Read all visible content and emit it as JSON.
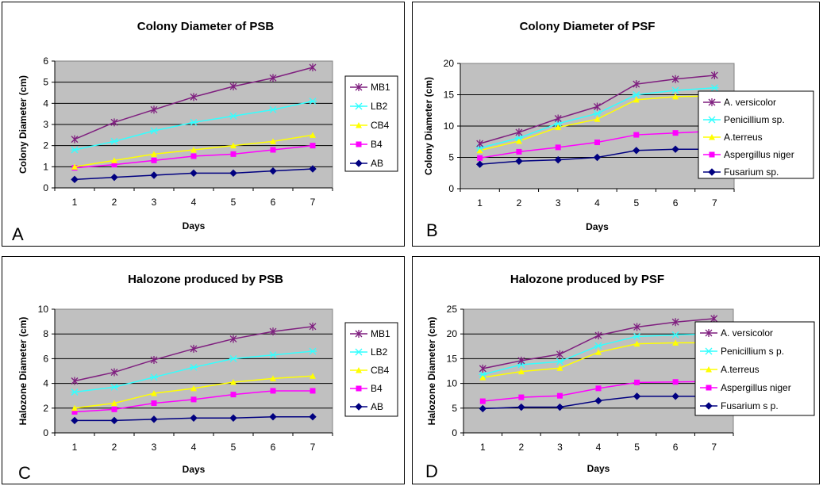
{
  "colors": {
    "plot_bg": "#c0c0c0",
    "grid": "#000000",
    "series": [
      "#7f1f7f",
      "#33ffff",
      "#ffff00",
      "#ff00ff",
      "#000080"
    ]
  },
  "chart_data": [
    {
      "panel": "A",
      "type": "line",
      "title": "Colony Diameter of PSB",
      "xlabel": "Days",
      "ylabel": "Colony Diameter (cm)",
      "x": [
        1,
        2,
        3,
        4,
        5,
        6,
        7
      ],
      "x_ticks": [
        "1",
        "2",
        "3",
        "4",
        "5",
        "6",
        "7"
      ],
      "ylim": [
        0,
        6
      ],
      "y_ticks": [
        "0",
        "1",
        "2",
        "3",
        "4",
        "5",
        "6"
      ],
      "grid": "horizontal",
      "legend_position": "right",
      "series": [
        {
          "name": "MB1",
          "marker": "star",
          "color": "#7f1f7f",
          "values": [
            2.3,
            3.1,
            3.7,
            4.3,
            4.8,
            5.2,
            5.7
          ]
        },
        {
          "name": "LB2",
          "marker": "asterisk",
          "color": "#33ffff",
          "values": [
            1.8,
            2.2,
            2.7,
            3.1,
            3.4,
            3.7,
            4.1
          ]
        },
        {
          "name": "CB4",
          "marker": "triangle",
          "color": "#ffff00",
          "values": [
            1.0,
            1.3,
            1.6,
            1.8,
            2.0,
            2.2,
            2.5
          ]
        },
        {
          "name": "B4",
          "marker": "square",
          "color": "#ff00ff",
          "values": [
            0.95,
            1.1,
            1.3,
            1.5,
            1.6,
            1.8,
            2.0
          ]
        },
        {
          "name": "AB",
          "marker": "diamond",
          "color": "#000080",
          "values": [
            0.4,
            0.5,
            0.6,
            0.7,
            0.7,
            0.8,
            0.9
          ]
        }
      ]
    },
    {
      "panel": "B",
      "type": "line",
      "title": "Colony Diameter of PSF",
      "xlabel": "Days",
      "ylabel": "Colony Diameter (cm)",
      "x": [
        1,
        2,
        3,
        4,
        5,
        6,
        7
      ],
      "x_ticks": [
        "1",
        "2",
        "3",
        "4",
        "5",
        "6",
        "7"
      ],
      "ylim": [
        0,
        20
      ],
      "y_ticks": [
        "0",
        "5",
        "10",
        "15",
        "20"
      ],
      "grid": "horizontal",
      "legend_position": "right",
      "series": [
        {
          "name": "A. versicolor",
          "marker": "star",
          "color": "#7f1f7f",
          "values": [
            7.2,
            9.0,
            11.2,
            13.1,
            16.7,
            17.5,
            18.1
          ]
        },
        {
          "name": "Penicillium sp.",
          "marker": "asterisk",
          "color": "#33ffff",
          "values": [
            6.5,
            8.1,
            10.4,
            12.0,
            15.0,
            15.7,
            16.1
          ]
        },
        {
          "name": "A.terreus",
          "marker": "triangle",
          "color": "#ffff00",
          "values": [
            6.1,
            7.6,
            9.8,
            11.1,
            14.2,
            14.7,
            14.8
          ]
        },
        {
          "name": "Aspergillus niger",
          "marker": "square",
          "color": "#ff00ff",
          "values": [
            4.9,
            5.9,
            6.6,
            7.4,
            8.6,
            8.9,
            9.2
          ]
        },
        {
          "name": "Fusarium sp.",
          "marker": "diamond",
          "color": "#000080",
          "values": [
            3.9,
            4.4,
            4.6,
            5.0,
            6.1,
            6.3,
            6.3
          ]
        }
      ]
    },
    {
      "panel": "C",
      "type": "line",
      "title": "Halozone produced by PSB",
      "xlabel": "Days",
      "ylabel": "Halozone Diameter (cm)",
      "x": [
        1,
        2,
        3,
        4,
        5,
        6,
        7
      ],
      "x_ticks": [
        "1",
        "2",
        "3",
        "4",
        "5",
        "6",
        "7"
      ],
      "ylim": [
        0,
        10
      ],
      "y_ticks": [
        "0",
        "2",
        "4",
        "6",
        "8",
        "10"
      ],
      "grid": "horizontal",
      "legend_position": "right",
      "series": [
        {
          "name": "MB1",
          "marker": "star",
          "color": "#7f1f7f",
          "values": [
            4.2,
            4.9,
            5.9,
            6.8,
            7.6,
            8.2,
            8.6
          ]
        },
        {
          "name": "LB2",
          "marker": "asterisk",
          "color": "#33ffff",
          "values": [
            3.3,
            3.7,
            4.5,
            5.3,
            6.0,
            6.3,
            6.6
          ]
        },
        {
          "name": "CB4",
          "marker": "triangle",
          "color": "#ffff00",
          "values": [
            2.0,
            2.4,
            3.2,
            3.6,
            4.1,
            4.4,
            4.6
          ]
        },
        {
          "name": "B4",
          "marker": "square",
          "color": "#ff00ff",
          "values": [
            1.7,
            1.9,
            2.4,
            2.7,
            3.1,
            3.4,
            3.4
          ]
        },
        {
          "name": "AB",
          "marker": "diamond",
          "color": "#000080",
          "values": [
            1.0,
            1.0,
            1.1,
            1.2,
            1.2,
            1.3,
            1.3
          ]
        }
      ]
    },
    {
      "panel": "D",
      "type": "line",
      "title": "Halozone produced by PSF",
      "xlabel": "Days",
      "ylabel": "Halozone Diameter (cm)",
      "x": [
        1,
        2,
        3,
        4,
        5,
        6,
        7
      ],
      "x_ticks": [
        "1",
        "2",
        "3",
        "4",
        "5",
        "6",
        "7"
      ],
      "ylim": [
        0,
        25
      ],
      "y_ticks": [
        "0",
        "5",
        "10",
        "15",
        "20",
        "25"
      ],
      "grid": "horizontal",
      "legend_position": "right",
      "series": [
        {
          "name": "A. versicolor",
          "marker": "star",
          "color": "#7f1f7f",
          "values": [
            13.0,
            14.6,
            15.9,
            19.7,
            21.4,
            22.4,
            23.1
          ]
        },
        {
          "name": "Penicillium s p.",
          "marker": "asterisk",
          "color": "#33ffff",
          "values": [
            11.8,
            13.8,
            14.4,
            17.6,
            19.5,
            19.8,
            20.0
          ]
        },
        {
          "name": "A.terreus",
          "marker": "triangle",
          "color": "#ffff00",
          "values": [
            11.2,
            12.4,
            13.1,
            16.3,
            18.0,
            18.2,
            18.2
          ]
        },
        {
          "name": "Aspergillus niger",
          "marker": "square",
          "color": "#ff00ff",
          "values": [
            6.4,
            7.2,
            7.5,
            9.0,
            10.2,
            10.3,
            10.4
          ]
        },
        {
          "name": "Fusarium s p.",
          "marker": "diamond",
          "color": "#000080",
          "values": [
            4.9,
            5.2,
            5.2,
            6.5,
            7.4,
            7.4,
            7.4
          ]
        }
      ]
    }
  ]
}
